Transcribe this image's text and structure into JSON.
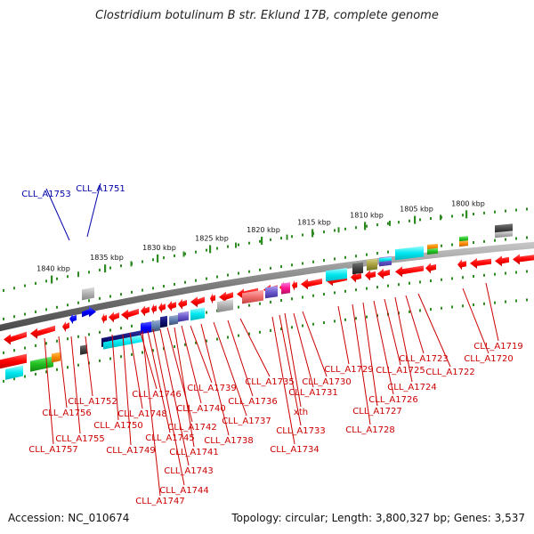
{
  "title": "Clostridium botulinum B str. Eklund 17B, complete genome",
  "accession": "Accession: NC_010674",
  "summary": "Topology: circular; Length: 3,800,327 bp; Genes: 3,537",
  "colors": {
    "forward_gene": "#ff0000",
    "reverse_gene": "#0000ff",
    "tick": "#2e8b22",
    "backbone": "#888888",
    "label_red": "#cc0000",
    "label_blue": "#0000aa"
  },
  "kbp_ticks": [
    "1840 kbp",
    "1835 kbp",
    "1830 kbp",
    "1825 kbp",
    "1820 kbp",
    "1815 kbp",
    "1810 kbp",
    "1805 kbp",
    "1800 kbp"
  ],
  "genes_blue": [
    "CLL_A1753",
    "CLL_A1751"
  ],
  "genes_red": [
    "CLL_A1752",
    "CLL_A1756",
    "CLL_A1755",
    "CLL_A1757",
    "CLL_A1750",
    "CLL_A1749",
    "CLL_A1748",
    "CLL_A1746",
    "CLL_A1745",
    "CLL_A1747",
    "CLL_A1744",
    "CLL_A1743",
    "CLL_A1742",
    "CLL_A1741",
    "CLL_A1740",
    "CLL_A1739",
    "CLL_A1738",
    "CLL_A1737",
    "CLL_A1736",
    "CLL_A1735",
    "CLL_A1734",
    "CLL_A1733",
    "xth",
    "CLL_A1731",
    "CLL_A1730",
    "CLL_A1729",
    "CLL_A1728",
    "CLL_A1727",
    "CLL_A1726",
    "CLL_A1725",
    "CLL_A1724",
    "CLL_A1723",
    "CLL_A1722",
    "CLL_A1720",
    "CLL_A1719"
  ]
}
